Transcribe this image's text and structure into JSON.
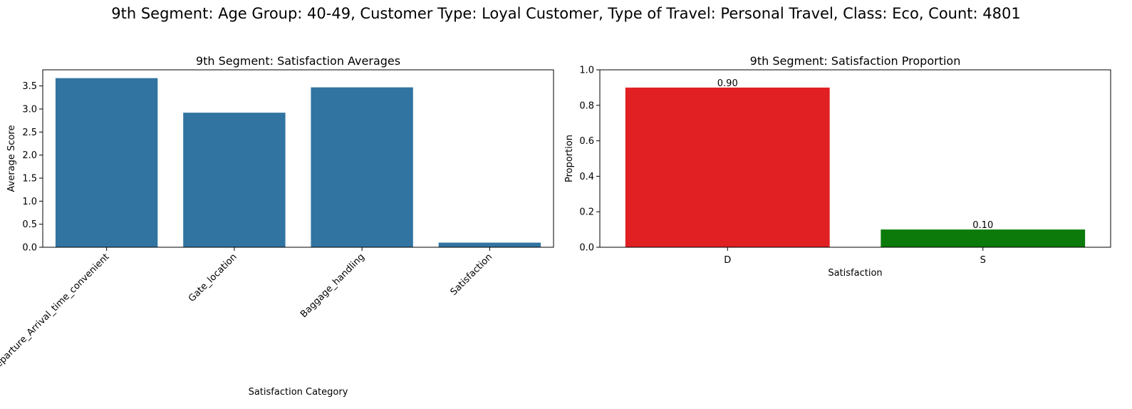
{
  "suptitle": "9th Segment: Age Group: 40-49, Customer Type: Loyal Customer, Type of Travel: Personal Travel, Class: Eco, Count: 4801",
  "chart_data": [
    {
      "type": "bar",
      "title": "9th Segment: Satisfaction Averages",
      "xlabel": "Satisfaction Category",
      "ylabel": "Average Score",
      "categories": [
        "Departure_Arrival_time_convenient",
        "Gate_location",
        "Baggage_handling",
        "Satisfaction"
      ],
      "values": [
        3.67,
        2.92,
        3.47,
        0.1
      ],
      "ylim": [
        0,
        3.85
      ],
      "yticks": [
        "0.0",
        "0.5",
        "1.0",
        "1.5",
        "2.0",
        "2.5",
        "3.0",
        "3.5"
      ],
      "color": "#3274a1",
      "grid": false
    },
    {
      "type": "bar",
      "title": "9th Segment: Satisfaction Proportion",
      "xlabel": "Satisfaction",
      "ylabel": "Proportion",
      "categories": [
        "D",
        "S"
      ],
      "values": [
        0.9,
        0.1
      ],
      "data_labels": [
        "0.90",
        "0.10"
      ],
      "ylim": [
        0,
        1.0
      ],
      "yticks": [
        "0.0",
        "0.2",
        "0.4",
        "0.6",
        "0.8",
        "1.0"
      ],
      "colors": [
        "#e02022",
        "#0b7a0b"
      ],
      "grid": false
    }
  ]
}
